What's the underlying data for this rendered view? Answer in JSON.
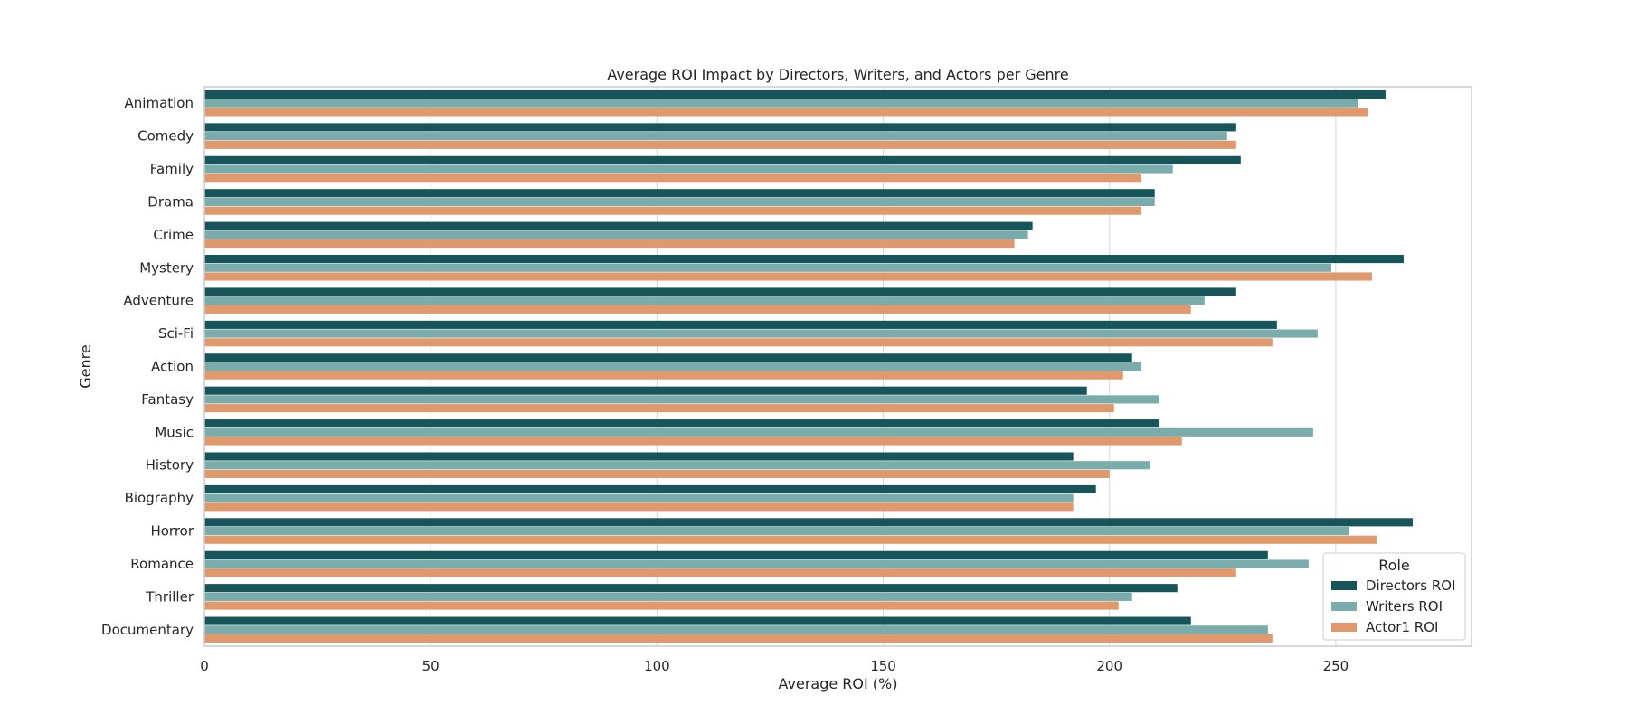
{
  "chart_data": {
    "type": "bar",
    "orientation": "horizontal",
    "title": "Average ROI Impact by Directors, Writers, and Actors per Genre",
    "xlabel": "Average ROI (%)",
    "ylabel": "Genre",
    "xlim": [
      0,
      280
    ],
    "xticks": [
      0,
      50,
      100,
      150,
      200,
      250
    ],
    "grid": true,
    "legend": {
      "title": "Role",
      "position": "lower right"
    },
    "categories": [
      "Animation",
      "Comedy",
      "Family",
      "Drama",
      "Crime",
      "Mystery",
      "Adventure",
      "Sci-Fi",
      "Action",
      "Fantasy",
      "Music",
      "History",
      "Biography",
      "Horror",
      "Romance",
      "Thriller",
      "Documentary"
    ],
    "series": [
      {
        "name": "Directors ROI",
        "color": "#17555a",
        "values": [
          261,
          228,
          229,
          210,
          183,
          265,
          228,
          237,
          205,
          195,
          211,
          192,
          197,
          267,
          235,
          215,
          218
        ]
      },
      {
        "name": "Writers ROI",
        "color": "#7aacab",
        "values": [
          255,
          226,
          214,
          210,
          182,
          249,
          221,
          246,
          207,
          211,
          245,
          209,
          192,
          253,
          244,
          205,
          235
        ]
      },
      {
        "name": "Actor1 ROI",
        "color": "#e0996c",
        "values": [
          257,
          228,
          207,
          207,
          179,
          258,
          218,
          236,
          203,
          201,
          216,
          200,
          192,
          259,
          228,
          202,
          236
        ]
      }
    ]
  }
}
